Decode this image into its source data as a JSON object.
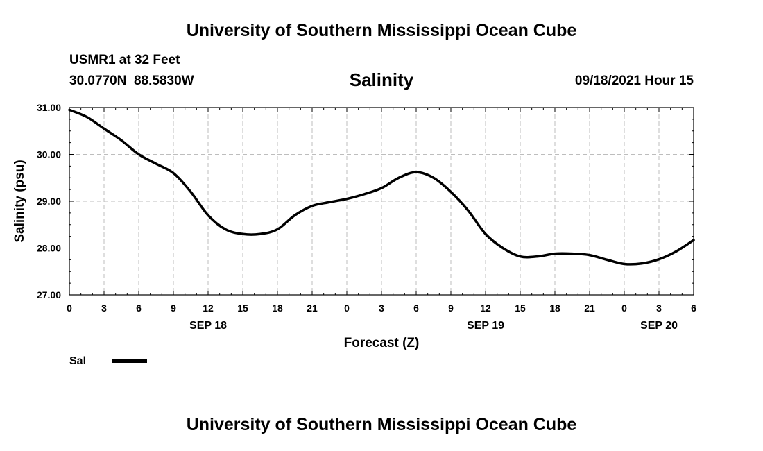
{
  "header": {
    "title": "University of Southern Mississippi Ocean Cube",
    "station": "USMR1 at 32 Feet",
    "coordinates": "30.0770N  88.5830W",
    "chart_title": "Salinity",
    "datetime": "09/18/2021 Hour 15"
  },
  "footer": {
    "title": "University of Southern Mississippi Ocean Cube"
  },
  "chart_data": {
    "type": "line",
    "title": "Salinity",
    "xlabel": "Forecast (Z)",
    "ylabel": "Salinity (psu)",
    "xlim": [
      0,
      54
    ],
    "ylim": [
      27.0,
      31.0
    ],
    "y_ticks": [
      "27.00",
      "28.00",
      "29.00",
      "30.00",
      "31.00"
    ],
    "x_tick_labels": [
      "0",
      "3",
      "6",
      "9",
      "12",
      "15",
      "18",
      "21",
      "0",
      "3",
      "6",
      "9",
      "12",
      "15",
      "18",
      "21",
      "0",
      "3",
      "6"
    ],
    "day_labels": [
      {
        "label": "SEP 18",
        "hour": 12
      },
      {
        "label": "SEP 19",
        "hour": 36
      },
      {
        "label": "SEP 20",
        "hour": 51
      }
    ],
    "grid": true,
    "legend": "bottom-left",
    "series": [
      {
        "name": "Sal",
        "color": "#000000",
        "x": [
          0,
          1.5,
          3,
          4.5,
          6,
          7.5,
          9,
          10.5,
          12,
          13.5,
          15,
          16.5,
          18,
          19.5,
          21,
          22.5,
          24,
          25.5,
          27,
          28.5,
          30,
          31.5,
          33,
          34.5,
          36,
          37.5,
          39,
          40.5,
          42,
          43.5,
          45,
          46.5,
          48,
          49.5,
          51,
          52.5,
          54
        ],
        "values": [
          30.95,
          30.8,
          30.55,
          30.3,
          30.0,
          29.8,
          29.6,
          29.2,
          28.7,
          28.4,
          28.3,
          28.3,
          28.4,
          28.7,
          28.9,
          28.98,
          29.05,
          29.15,
          29.28,
          29.5,
          29.62,
          29.5,
          29.2,
          28.8,
          28.3,
          28.0,
          27.82,
          27.82,
          27.88,
          27.88,
          27.85,
          27.75,
          27.66,
          27.67,
          27.76,
          27.93,
          28.17
        ]
      }
    ]
  }
}
